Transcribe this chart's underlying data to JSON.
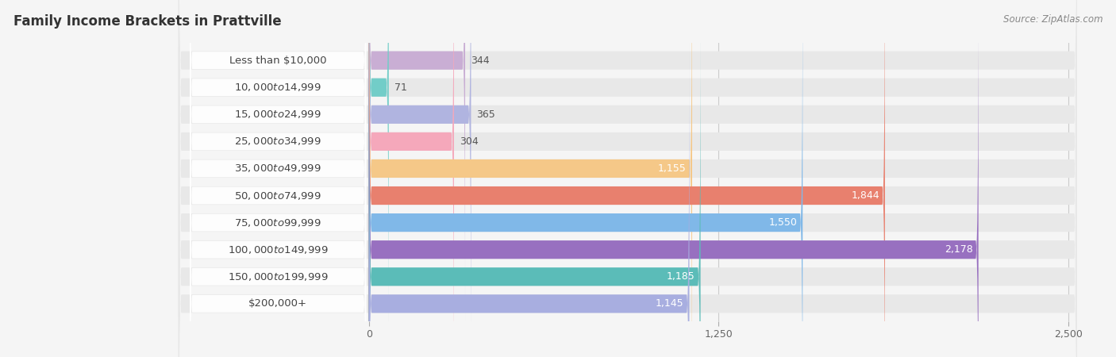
{
  "title": "Family Income Brackets in Prattville",
  "source": "Source: ZipAtlas.com",
  "categories": [
    "Less than $10,000",
    "$10,000 to $14,999",
    "$15,000 to $24,999",
    "$25,000 to $34,999",
    "$35,000 to $49,999",
    "$50,000 to $74,999",
    "$75,000 to $99,999",
    "$100,000 to $149,999",
    "$150,000 to $199,999",
    "$200,000+"
  ],
  "values": [
    344,
    71,
    365,
    304,
    1155,
    1844,
    1550,
    2178,
    1185,
    1145
  ],
  "bar_colors": [
    "#c9aed4",
    "#72cdc8",
    "#b0b4e0",
    "#f5a8bb",
    "#f5c888",
    "#e8806e",
    "#80b8e8",
    "#9870c0",
    "#5bbcb8",
    "#a8aee0"
  ],
  "bg_color": "#f5f5f5",
  "row_bg_color": "#e8e8e8",
  "xlim_max": 2500,
  "xticks": [
    0,
    1250,
    2500
  ],
  "xticklabels": [
    "0",
    "1,250",
    "2,500"
  ],
  "title_fontsize": 12,
  "source_fontsize": 8.5,
  "label_fontsize": 9.5,
  "value_fontsize": 9,
  "tick_fontsize": 9,
  "value_threshold": 500
}
